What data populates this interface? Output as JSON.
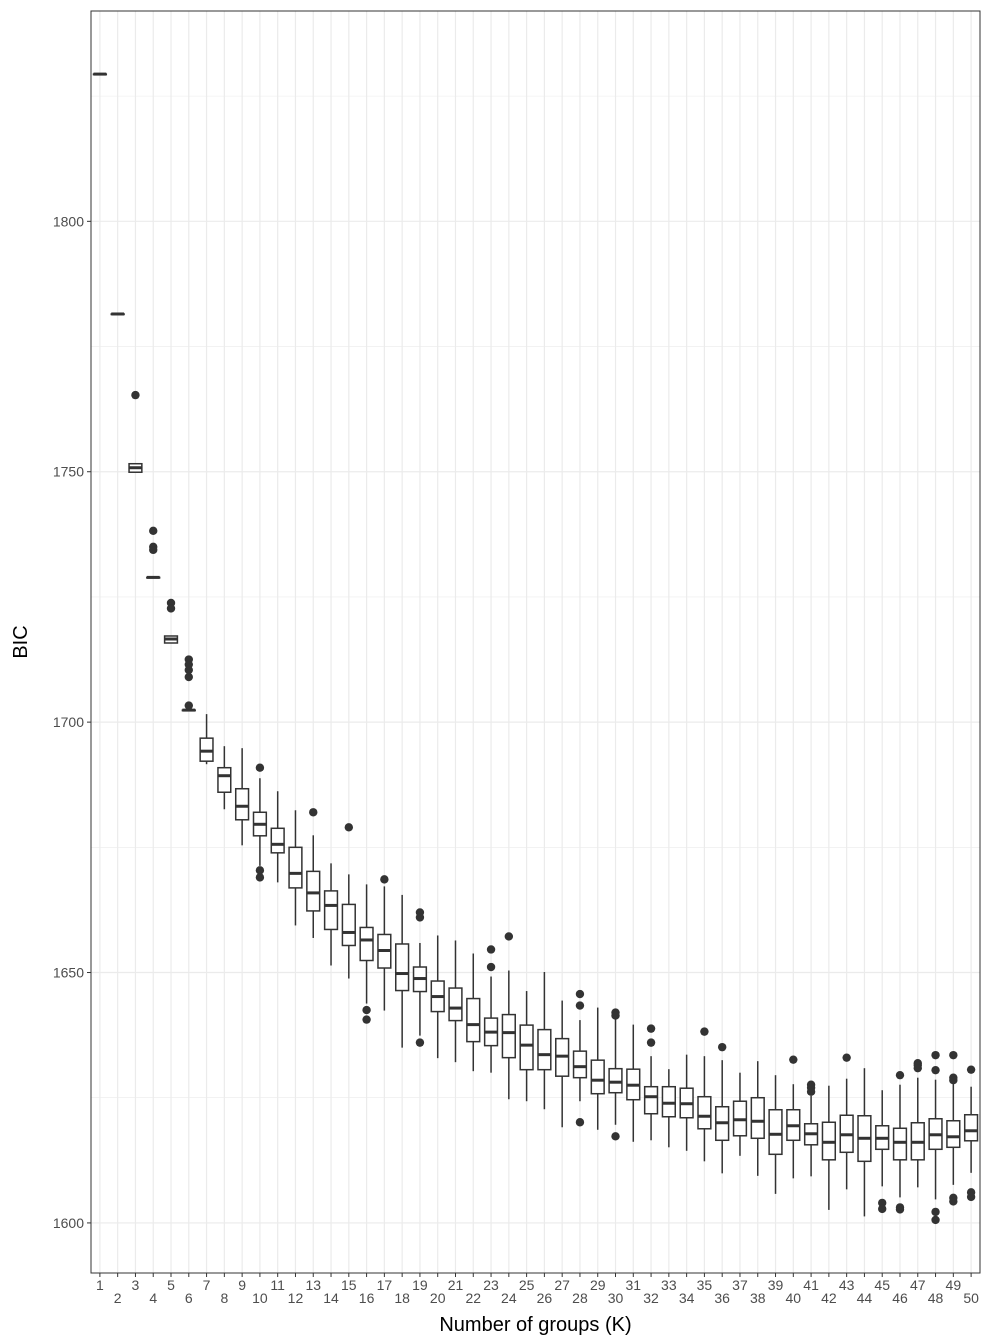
{
  "chart_data": {
    "type": "boxplot",
    "xlabel": "Number of groups (K)",
    "ylabel": "BIC",
    "ylim": [
      1590,
      1842
    ],
    "y_ticks": [
      1600,
      1650,
      1700,
      1750,
      1800
    ],
    "grid": true,
    "theme": "bw",
    "colors": {
      "box_stroke": "#333333",
      "grid": "#ebebeb",
      "panel_border": "#333333"
    },
    "categories": [
      "1",
      "2",
      "3",
      "4",
      "5",
      "6",
      "7",
      "8",
      "9",
      "10",
      "11",
      "12",
      "13",
      "14",
      "15",
      "16",
      "17",
      "18",
      "19",
      "20",
      "21",
      "22",
      "23",
      "24",
      "25",
      "26",
      "27",
      "28",
      "29",
      "30",
      "31",
      "32",
      "33",
      "34",
      "35",
      "36",
      "37",
      "38",
      "39",
      "40",
      "41",
      "42",
      "43",
      "44",
      "45",
      "46",
      "47",
      "48",
      "49",
      "50"
    ],
    "boxes": [
      {
        "k": 1,
        "lw": 1829.4,
        "q1": 1829.4,
        "med": 1829.4,
        "q3": 1829.4,
        "uw": 1829.4,
        "out": []
      },
      {
        "k": 2,
        "lw": 1781.5,
        "q1": 1781.5,
        "med": 1781.5,
        "q3": 1781.5,
        "uw": 1781.5,
        "out": []
      },
      {
        "k": 3,
        "lw": 1749.9,
        "q1": 1749.9,
        "med": 1750.8,
        "q3": 1751.6,
        "uw": 1751.6,
        "out": [
          1765.3
        ]
      },
      {
        "k": 4,
        "lw": 1728.9,
        "q1": 1728.9,
        "med": 1728.9,
        "q3": 1728.9,
        "uw": 1728.9,
        "out": [
          1738.2,
          1735.0,
          1734.4
        ]
      },
      {
        "k": 5,
        "lw": 1715.8,
        "q1": 1715.8,
        "med": 1716.6,
        "q3": 1717.2,
        "uw": 1717.2,
        "out": [
          1723.8,
          1722.7
        ]
      },
      {
        "k": 6,
        "lw": 1702.4,
        "q1": 1702.4,
        "med": 1702.4,
        "q3": 1702.4,
        "uw": 1702.4,
        "out": [
          1712.5,
          1711.5,
          1710.4,
          1709.0,
          1703.3
        ]
      },
      {
        "k": 7,
        "lw": 1691.6,
        "q1": 1692.2,
        "med": 1694.2,
        "q3": 1696.8,
        "uw": 1701.6,
        "out": []
      },
      {
        "k": 8,
        "lw": 1682.6,
        "q1": 1686.0,
        "med": 1689.3,
        "q3": 1690.9,
        "uw": 1695.2,
        "out": []
      },
      {
        "k": 9,
        "lw": 1675.4,
        "q1": 1680.5,
        "med": 1683.2,
        "q3": 1686.7,
        "uw": 1694.8,
        "out": []
      },
      {
        "k": 10,
        "lw": 1671.3,
        "q1": 1677.3,
        "med": 1679.6,
        "q3": 1682.0,
        "uw": 1688.8,
        "out": [
          1690.9,
          1670.4,
          1669.0
        ]
      },
      {
        "k": 11,
        "lw": 1668.0,
        "q1": 1673.9,
        "med": 1675.6,
        "q3": 1678.8,
        "uw": 1686.2,
        "out": []
      },
      {
        "k": 12,
        "lw": 1659.4,
        "q1": 1666.9,
        "med": 1669.8,
        "q3": 1675.0,
        "uw": 1682.4,
        "out": []
      },
      {
        "k": 13,
        "lw": 1656.9,
        "q1": 1662.3,
        "med": 1665.9,
        "q3": 1670.2,
        "uw": 1677.4,
        "out": [
          1682.0
        ]
      },
      {
        "k": 14,
        "lw": 1651.4,
        "q1": 1658.6,
        "med": 1663.4,
        "q3": 1666.3,
        "uw": 1671.8,
        "out": []
      },
      {
        "k": 15,
        "lw": 1648.8,
        "q1": 1655.4,
        "med": 1658.0,
        "q3": 1663.6,
        "uw": 1669.6,
        "out": [
          1679.0
        ]
      },
      {
        "k": 16,
        "lw": 1643.8,
        "q1": 1652.4,
        "med": 1656.5,
        "q3": 1659.0,
        "uw": 1667.6,
        "out": [
          1642.5,
          1640.6
        ]
      },
      {
        "k": 17,
        "lw": 1642.4,
        "q1": 1650.9,
        "med": 1654.4,
        "q3": 1657.6,
        "uw": 1667.2,
        "out": [
          1668.6
        ]
      },
      {
        "k": 18,
        "lw": 1635.0,
        "q1": 1646.4,
        "med": 1649.8,
        "q3": 1655.7,
        "uw": 1665.5,
        "out": []
      },
      {
        "k": 19,
        "lw": 1637.4,
        "q1": 1646.2,
        "med": 1648.8,
        "q3": 1651.1,
        "uw": 1655.9,
        "out": [
          1662.0,
          1661.0,
          1636.0
        ]
      },
      {
        "k": 20,
        "lw": 1632.9,
        "q1": 1642.2,
        "med": 1645.2,
        "q3": 1648.3,
        "uw": 1657.4,
        "out": []
      },
      {
        "k": 21,
        "lw": 1632.1,
        "q1": 1640.4,
        "med": 1642.9,
        "q3": 1646.9,
        "uw": 1656.4,
        "out": []
      },
      {
        "k": 22,
        "lw": 1630.3,
        "q1": 1636.2,
        "med": 1639.6,
        "q3": 1644.8,
        "uw": 1653.8,
        "out": []
      },
      {
        "k": 23,
        "lw": 1630.0,
        "q1": 1635.4,
        "med": 1638.1,
        "q3": 1640.9,
        "uw": 1649.2,
        "out": [
          1654.6,
          1651.1
        ]
      },
      {
        "k": 24,
        "lw": 1624.7,
        "q1": 1633.0,
        "med": 1638.0,
        "q3": 1641.6,
        "uw": 1650.4,
        "out": [
          1657.2
        ]
      },
      {
        "k": 25,
        "lw": 1624.3,
        "q1": 1630.6,
        "med": 1635.5,
        "q3": 1639.5,
        "uw": 1646.3,
        "out": []
      },
      {
        "k": 26,
        "lw": 1622.7,
        "q1": 1630.6,
        "med": 1633.6,
        "q3": 1638.6,
        "uw": 1650.1,
        "out": []
      },
      {
        "k": 27,
        "lw": 1619.1,
        "q1": 1629.3,
        "med": 1633.3,
        "q3": 1636.8,
        "uw": 1644.4,
        "out": []
      },
      {
        "k": 28,
        "lw": 1624.3,
        "q1": 1629.0,
        "med": 1631.2,
        "q3": 1634.3,
        "uw": 1640.5,
        "out": [
          1645.7,
          1643.4,
          1620.1
        ]
      },
      {
        "k": 29,
        "lw": 1618.6,
        "q1": 1625.8,
        "med": 1628.5,
        "q3": 1632.5,
        "uw": 1643.0,
        "out": []
      },
      {
        "k": 30,
        "lw": 1619.6,
        "q1": 1626.0,
        "med": 1628.1,
        "q3": 1630.8,
        "uw": 1640.7,
        "out": [
          1642.0,
          1641.4,
          1617.3
        ]
      },
      {
        "k": 31,
        "lw": 1616.2,
        "q1": 1624.6,
        "med": 1627.5,
        "q3": 1630.7,
        "uw": 1639.6,
        "out": []
      },
      {
        "k": 32,
        "lw": 1616.5,
        "q1": 1621.8,
        "med": 1625.2,
        "q3": 1627.2,
        "uw": 1633.3,
        "out": [
          1638.8,
          1636.0
        ]
      },
      {
        "k": 33,
        "lw": 1615.1,
        "q1": 1621.2,
        "med": 1623.9,
        "q3": 1627.2,
        "uw": 1630.7,
        "out": []
      },
      {
        "k": 34,
        "lw": 1614.4,
        "q1": 1621.0,
        "med": 1623.8,
        "q3": 1626.9,
        "uw": 1633.6,
        "out": []
      },
      {
        "k": 35,
        "lw": 1612.3,
        "q1": 1618.8,
        "med": 1621.3,
        "q3": 1625.2,
        "uw": 1633.3,
        "out": [
          1638.2
        ]
      },
      {
        "k": 36,
        "lw": 1609.9,
        "q1": 1616.5,
        "med": 1620.0,
        "q3": 1623.2,
        "uw": 1632.5,
        "out": [
          1635.1
        ]
      },
      {
        "k": 37,
        "lw": 1613.4,
        "q1": 1617.4,
        "med": 1620.6,
        "q3": 1624.3,
        "uw": 1630.0,
        "out": []
      },
      {
        "k": 38,
        "lw": 1609.4,
        "q1": 1616.9,
        "med": 1620.3,
        "q3": 1625.0,
        "uw": 1632.3,
        "out": []
      },
      {
        "k": 39,
        "lw": 1605.8,
        "q1": 1613.7,
        "med": 1617.7,
        "q3": 1622.6,
        "uw": 1629.5,
        "out": []
      },
      {
        "k": 40,
        "lw": 1608.9,
        "q1": 1616.5,
        "med": 1619.4,
        "q3": 1622.6,
        "uw": 1627.7,
        "out": [
          1632.6
        ]
      },
      {
        "k": 41,
        "lw": 1609.3,
        "q1": 1615.6,
        "med": 1617.8,
        "q3": 1619.8,
        "uw": 1625.4,
        "out": [
          1627.6,
          1627.0,
          1626.2
        ]
      },
      {
        "k": 42,
        "lw": 1602.6,
        "q1": 1612.6,
        "med": 1616.1,
        "q3": 1620.1,
        "uw": 1627.4,
        "out": []
      },
      {
        "k": 43,
        "lw": 1606.7,
        "q1": 1614.1,
        "med": 1617.6,
        "q3": 1621.5,
        "uw": 1628.8,
        "out": [
          1633.0
        ]
      },
      {
        "k": 44,
        "lw": 1601.3,
        "q1": 1612.3,
        "med": 1616.9,
        "q3": 1621.4,
        "uw": 1630.9,
        "out": []
      },
      {
        "k": 45,
        "lw": 1607.3,
        "q1": 1614.7,
        "med": 1616.9,
        "q3": 1619.4,
        "uw": 1626.5,
        "out": [
          1604.0,
          1602.8
        ]
      },
      {
        "k": 46,
        "lw": 1605.1,
        "q1": 1612.6,
        "med": 1616.1,
        "q3": 1618.9,
        "uw": 1627.6,
        "out": [
          1629.5,
          1603.1,
          1602.7
        ]
      },
      {
        "k": 47,
        "lw": 1607.1,
        "q1": 1612.6,
        "med": 1616.1,
        "q3": 1620.0,
        "uw": 1629.0,
        "out": [
          1631.9,
          1631.5,
          1630.9
        ]
      },
      {
        "k": 48,
        "lw": 1604.7,
        "q1": 1614.7,
        "med": 1617.6,
        "q3": 1620.8,
        "uw": 1628.6,
        "out": [
          1633.5,
          1630.5,
          1602.2,
          1600.6
        ]
      },
      {
        "k": 49,
        "lw": 1607.6,
        "q1": 1615.1,
        "med": 1617.2,
        "q3": 1620.4,
        "uw": 1627.8,
        "out": [
          1633.5,
          1629.0,
          1628.5,
          1605.0,
          1604.3
        ]
      },
      {
        "k": 50,
        "lw": 1610.0,
        "q1": 1616.4,
        "med": 1618.4,
        "q3": 1621.6,
        "uw": 1627.2,
        "out": [
          1630.6,
          1606.1,
          1605.2
        ]
      }
    ]
  }
}
